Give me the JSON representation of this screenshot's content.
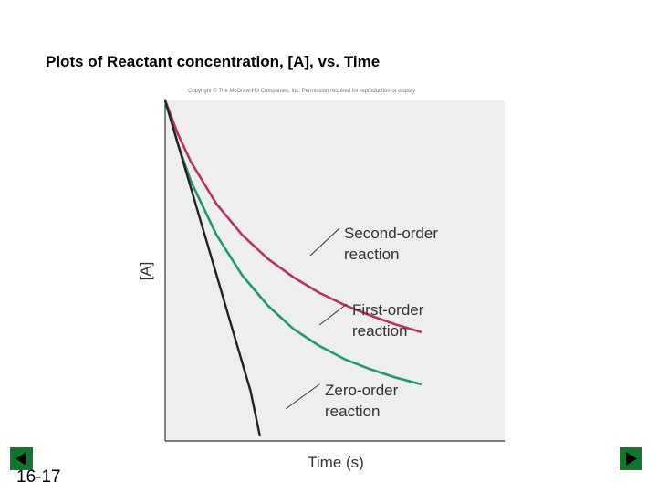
{
  "slide": {
    "title": "Plots of Reactant concentration, [A], vs. Time",
    "number": "16-17",
    "copyright": "Copyright © The McGraw-Hill Companies, Inc. Permission required for reproduction or display"
  },
  "nav": {
    "prev_icon": "triangle-left-icon",
    "next_icon": "triangle-right-icon",
    "button_color": "#0a7a2a"
  },
  "chart_data": {
    "type": "line",
    "title": "",
    "xlabel": "Time (s)",
    "ylabel": "[A]",
    "xlim": [
      0,
      1
    ],
    "ylim": [
      0,
      1
    ],
    "grid": false,
    "background": "#eeeeee",
    "series": [
      {
        "name": "Second-order reaction",
        "color": "#b8325a",
        "x": [
          0,
          0.05,
          0.1,
          0.2,
          0.3,
          0.4,
          0.5,
          0.6,
          0.7,
          0.8,
          0.9,
          1.0
        ],
        "y": [
          1.0,
          0.9,
          0.818,
          0.692,
          0.6,
          0.529,
          0.474,
          0.428,
          0.391,
          0.36,
          0.333,
          0.31
        ]
      },
      {
        "name": "First-order reaction",
        "color": "#1e9a64",
        "x": [
          0,
          0.05,
          0.1,
          0.2,
          0.3,
          0.4,
          0.5,
          0.6,
          0.7,
          0.8,
          0.9,
          1.0
        ],
        "y": [
          1.0,
          0.87,
          0.76,
          0.6,
          0.48,
          0.39,
          0.32,
          0.27,
          0.23,
          0.2,
          0.175,
          0.155
        ]
      },
      {
        "name": "Zero-order reaction",
        "color": "#222222",
        "x": [
          0,
          0.05,
          0.1,
          0.15,
          0.2,
          0.25,
          0.3,
          0.35,
          0.4,
          0.45,
          0.5
        ],
        "y": [
          1.0,
          0.904,
          0.808,
          0.712,
          0.616,
          0.52,
          0.424,
          0.328,
          0.232,
          0.136,
          0.0
        ]
      }
    ],
    "annotations": [
      {
        "lines": [
          "Second-order",
          "reaction"
        ],
        "series": "Second-order reaction"
      },
      {
        "lines": [
          "First-order",
          "reaction"
        ],
        "series": "First-order reaction"
      },
      {
        "lines": [
          "Zero-order",
          "reaction"
        ],
        "series": "Zero-order reaction"
      }
    ]
  }
}
